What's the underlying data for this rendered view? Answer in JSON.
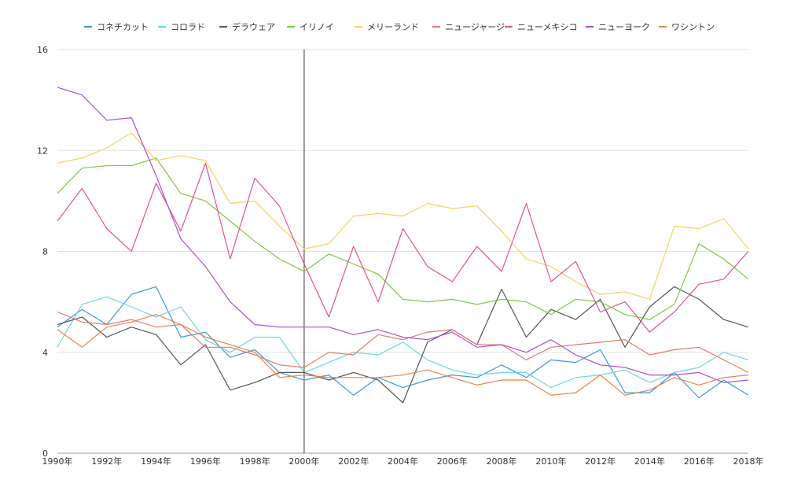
{
  "chart_data": {
    "type": "line",
    "title": "",
    "xlabel": "",
    "ylabel": "",
    "ylim": [
      0,
      16
    ],
    "yticks": [
      0,
      4,
      8,
      12,
      16
    ],
    "x": [
      "1990年",
      "1991年",
      "1992年",
      "1993年",
      "1994年",
      "1995年",
      "1996年",
      "1997年",
      "1998年",
      "1999年",
      "2000年",
      "2001年",
      "2002年",
      "2003年",
      "2004年",
      "2005年",
      "2006年",
      "2007年",
      "2008年",
      "2009年",
      "2010年",
      "2011年",
      "2012年",
      "2013年",
      "2014年",
      "2015年",
      "2016年",
      "2017年",
      "2018年"
    ],
    "xtick_labels": [
      "1990年",
      "1992年",
      "1994年",
      "1996年",
      "1998年",
      "2000年",
      "2002年",
      "2004年",
      "2006年",
      "2008年",
      "2010年",
      "2012年",
      "2014年",
      "2016年",
      "2018年"
    ],
    "grid": true,
    "legend_position": "top",
    "marker_line_at": "2000年",
    "series": [
      {
        "name": "コネチカット",
        "color": "#3a9ad9",
        "values": [
          5.0,
          5.7,
          5.1,
          6.3,
          6.6,
          4.6,
          4.8,
          3.8,
          4.1,
          3.2,
          2.9,
          3.1,
          2.3,
          3.0,
          2.6,
          2.9,
          3.1,
          3.0,
          3.5,
          3.0,
          3.7,
          3.6,
          4.1,
          2.4,
          2.4,
          3.2,
          2.2,
          2.9,
          2.3
        ]
      },
      {
        "name": "コロラド",
        "color": "#6fd6d6",
        "values": [
          4.2,
          5.9,
          6.2,
          5.8,
          5.4,
          5.8,
          4.5,
          4.0,
          4.6,
          4.6,
          3.2,
          3.6,
          4.0,
          3.9,
          4.4,
          3.7,
          3.3,
          3.1,
          3.2,
          3.2,
          2.6,
          3.0,
          3.1,
          3.3,
          2.8,
          3.2,
          3.4,
          4.0,
          3.7
        ]
      },
      {
        "name": "デラウェア",
        "color": "#555555",
        "values": [
          5.1,
          5.4,
          4.6,
          5.0,
          4.7,
          3.5,
          4.3,
          2.5,
          2.8,
          3.2,
          3.2,
          2.9,
          3.2,
          2.9,
          2.0,
          4.4,
          4.9,
          4.3,
          6.5,
          4.6,
          5.7,
          5.3,
          6.1,
          4.2,
          5.8,
          6.6,
          6.1,
          5.3,
          5.0
        ]
      },
      {
        "name": "イリノイ",
        "color": "#7ac943",
        "values": [
          10.3,
          11.3,
          11.4,
          11.4,
          11.7,
          10.3,
          10.0,
          9.2,
          8.4,
          7.7,
          7.2,
          7.9,
          7.5,
          7.1,
          6.1,
          6.0,
          6.1,
          5.9,
          6.1,
          6.0,
          5.5,
          6.1,
          6.0,
          5.5,
          5.3,
          5.9,
          8.3,
          7.7,
          6.9
        ]
      },
      {
        "name": "メリーランド",
        "color": "#f4d35e",
        "values": [
          11.5,
          11.7,
          12.1,
          12.7,
          11.6,
          11.8,
          11.6,
          9.9,
          10.0,
          9.0,
          8.1,
          8.3,
          9.4,
          9.5,
          9.4,
          9.9,
          9.7,
          9.8,
          8.8,
          7.7,
          7.4,
          6.8,
          6.3,
          6.4,
          6.1,
          9.0,
          8.9,
          9.3,
          8.1
        ]
      },
      {
        "name": "ニュージャージ",
        "color": "#e07b6a",
        "values": [
          5.6,
          5.2,
          5.1,
          5.3,
          5.0,
          5.1,
          4.2,
          4.2,
          3.9,
          3.5,
          3.4,
          4.0,
          3.9,
          4.7,
          4.5,
          4.8,
          4.9,
          4.3,
          4.3,
          3.7,
          4.2,
          4.3,
          4.4,
          4.5,
          3.9,
          4.1,
          4.2,
          3.7,
          3.2
        ]
      },
      {
        "name": "ニューメキシコ",
        "color": "#e0509a",
        "values": [
          9.2,
          10.5,
          8.9,
          8.0,
          10.7,
          8.8,
          11.5,
          7.7,
          10.9,
          9.8,
          7.5,
          5.4,
          8.2,
          6.0,
          8.9,
          7.4,
          6.8,
          8.2,
          7.2,
          9.9,
          6.8,
          7.6,
          5.6,
          6.0,
          4.8,
          5.6,
          6.7,
          6.9,
          8.0
        ]
      },
      {
        "name": "ニューヨーク",
        "color": "#a94fd4",
        "values": [
          14.5,
          14.2,
          13.2,
          13.3,
          11.0,
          8.5,
          7.4,
          6.0,
          5.1,
          5.0,
          5.0,
          5.0,
          4.7,
          4.9,
          4.6,
          4.5,
          4.8,
          4.2,
          4.3,
          4.0,
          4.5,
          3.9,
          3.5,
          3.4,
          3.1,
          3.1,
          3.2,
          2.8,
          2.9
        ]
      },
      {
        "name": "ワシントン",
        "color": "#e8844a",
        "values": [
          4.9,
          4.2,
          5.0,
          5.2,
          5.5,
          5.1,
          4.6,
          4.3,
          4.0,
          3.0,
          3.1,
          3.0,
          3.0,
          3.0,
          3.1,
          3.3,
          3.0,
          2.7,
          2.9,
          2.9,
          2.3,
          2.4,
          3.1,
          2.3,
          2.5,
          3.0,
          2.7,
          3.0,
          3.1
        ]
      }
    ]
  }
}
